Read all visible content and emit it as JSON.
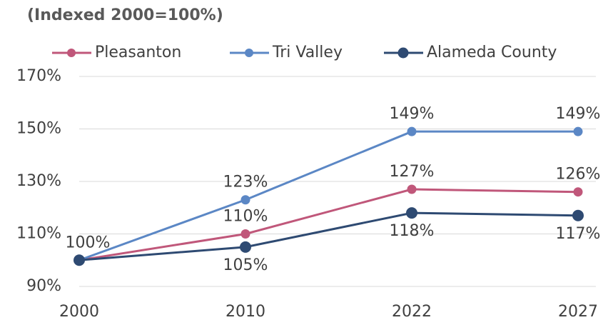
{
  "chart_data": {
    "type": "line",
    "title": "(Indexed 2000=100%)",
    "categories": [
      "2000",
      "2010",
      "2022",
      "2027"
    ],
    "series": [
      {
        "name": "Pleasanton",
        "color": "#c0577a",
        "values": [
          100,
          110,
          127,
          126
        ],
        "value_labels": [
          "100%",
          "110%",
          "127%",
          "126%"
        ]
      },
      {
        "name": "Tri Valley",
        "color": "#5b87c5",
        "values": [
          100,
          123,
          149,
          149
        ],
        "value_labels": [
          null,
          "123%",
          "149%",
          "149%"
        ]
      },
      {
        "name": "Alameda County",
        "color": "#2e4a72",
        "values": [
          100,
          105,
          118,
          117
        ],
        "value_labels": [
          null,
          "105%",
          "118%",
          "117%"
        ]
      }
    ],
    "ylim": [
      90,
      170
    ],
    "yticks": [
      {
        "value": 90,
        "label": "90%"
      },
      {
        "value": 110,
        "label": "110%"
      },
      {
        "value": 130,
        "label": "130%"
      },
      {
        "value": 150,
        "label": "150%"
      },
      {
        "value": 170,
        "label": "170%"
      }
    ],
    "grid": true,
    "legend": "top"
  }
}
